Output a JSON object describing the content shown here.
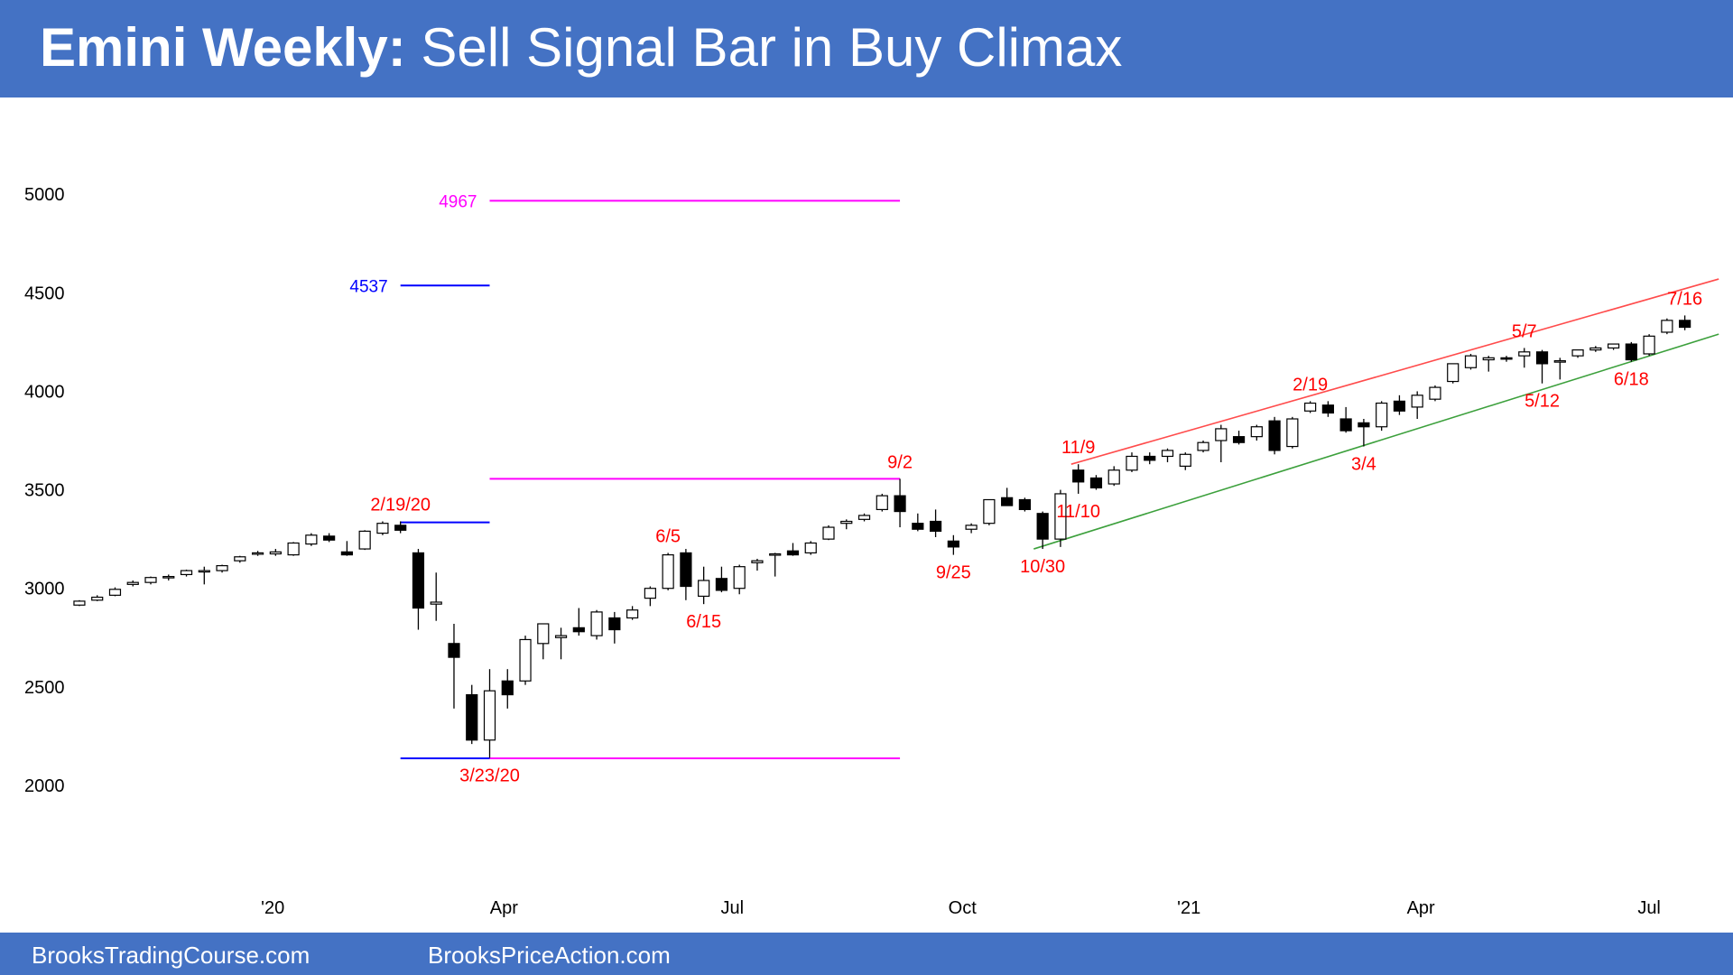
{
  "header": {
    "title_lead": "Emini Weekly:",
    "title_rest": "Sell Signal Bar in Buy Climax"
  },
  "footer": {
    "left": "BrooksTradingCourse.com",
    "right": "BrooksPriceAction.com"
  },
  "chart_data": {
    "type": "candlestick",
    "open": [
      2915,
      2940,
      2965,
      3020,
      3030,
      3055,
      3070,
      3085,
      3090,
      3140,
      3175,
      3175,
      3170,
      3225,
      3265,
      3185,
      3200,
      3280,
      3320,
      3180,
      2920,
      2720,
      2460,
      2230,
      2530,
      2530,
      2720,
      2750,
      2800,
      2760,
      2850,
      2850,
      2950,
      3000,
      3180,
      2960,
      3050,
      3000,
      3130,
      3170,
      3190,
      3180,
      3250,
      3330,
      3350,
      3400,
      3470,
      3330,
      3340,
      3240,
      3300,
      3330,
      3460,
      3450,
      3380,
      3250,
      3600,
      3560,
      3530,
      3600,
      3670,
      3670,
      3620,
      3700,
      3750,
      3770,
      3770,
      3850,
      3720,
      3900,
      3930,
      3860,
      3840,
      3820,
      3950,
      3920,
      3960,
      4050,
      4120,
      4160,
      4170,
      4180,
      4200,
      4150,
      4180,
      4210,
      4220,
      4240,
      4190,
      4300,
      4360
    ],
    "high": [
      2940,
      2965,
      3005,
      3040,
      3060,
      3070,
      3095,
      3110,
      3120,
      3165,
      3190,
      3200,
      3235,
      3280,
      3280,
      3240,
      3295,
      3340,
      3340,
      3200,
      3080,
      2820,
      2510,
      2590,
      2590,
      2760,
      2820,
      2800,
      2900,
      2890,
      2880,
      2910,
      3010,
      3180,
      3200,
      3110,
      3110,
      3120,
      3150,
      3180,
      3230,
      3240,
      3320,
      3350,
      3380,
      3480,
      3556,
      3380,
      3400,
      3270,
      3330,
      3450,
      3510,
      3460,
      3390,
      3500,
      3630,
      3575,
      3620,
      3690,
      3690,
      3710,
      3690,
      3750,
      3830,
      3800,
      3830,
      3870,
      3870,
      3950,
      3950,
      3920,
      3860,
      3950,
      3980,
      4000,
      4030,
      4140,
      4190,
      4180,
      4180,
      4220,
      4210,
      4170,
      4210,
      4230,
      4240,
      4250,
      4290,
      4370,
      4385
    ],
    "low": [
      2910,
      2935,
      2960,
      3010,
      3020,
      3040,
      3060,
      3020,
      3080,
      3130,
      3165,
      3165,
      3165,
      3215,
      3235,
      3165,
      3195,
      3270,
      3280,
      2790,
      2835,
      2390,
      2210,
      2140,
      2390,
      2510,
      2640,
      2640,
      2760,
      2740,
      2720,
      2840,
      2910,
      2990,
      2940,
      2920,
      2980,
      2970,
      3090,
      3060,
      3165,
      3170,
      3245,
      3300,
      3340,
      3390,
      3310,
      3290,
      3260,
      3170,
      3280,
      3320,
      3420,
      3390,
      3200,
      3210,
      3480,
      3500,
      3520,
      3590,
      3630,
      3640,
      3600,
      3690,
      3640,
      3730,
      3750,
      3680,
      3710,
      3890,
      3870,
      3790,
      3720,
      3800,
      3880,
      3860,
      3950,
      4040,
      4110,
      4100,
      4150,
      4120,
      4040,
      4060,
      4170,
      4200,
      4210,
      4150,
      4180,
      4290,
      4310
    ],
    "close": [
      2935,
      2955,
      2995,
      3030,
      3055,
      3060,
      3090,
      3090,
      3115,
      3160,
      3180,
      3185,
      3230,
      3270,
      3245,
      3170,
      3290,
      3330,
      3295,
      2900,
      2930,
      2650,
      2230,
      2480,
      2460,
      2740,
      2820,
      2760,
      2780,
      2880,
      2790,
      2890,
      3000,
      3170,
      3010,
      3040,
      2990,
      3110,
      3140,
      3175,
      3170,
      3230,
      3310,
      3340,
      3370,
      3470,
      3390,
      3300,
      3290,
      3210,
      3320,
      3450,
      3420,
      3400,
      3250,
      3480,
      3540,
      3510,
      3600,
      3670,
      3650,
      3700,
      3680,
      3740,
      3810,
      3740,
      3820,
      3700,
      3860,
      3940,
      3890,
      3800,
      3820,
      3940,
      3900,
      3980,
      4020,
      4140,
      4180,
      4170,
      4165,
      4200,
      4140,
      4155,
      4210,
      4220,
      4240,
      4160,
      4280,
      4360,
      4325
    ],
    "xlim": [
      -4.45,
      92.7
    ],
    "xticks": [
      {
        "value": 10.84,
        "label": "'20"
      },
      {
        "value": 23.8,
        "label": "Apr"
      },
      {
        "value": 36.6,
        "label": "Jul"
      },
      {
        "value": 49.5,
        "label": "Oct"
      },
      {
        "value": 62.2,
        "label": "'21"
      },
      {
        "value": 75.2,
        "label": "Apr"
      },
      {
        "value": 88.0,
        "label": "Jul"
      }
    ],
    "ylim": [
      1450,
      5230
    ],
    "yticks": [
      2000,
      2500,
      3000,
      3500,
      4000,
      4500,
      5000
    ],
    "levels": [
      {
        "value": 4967,
        "label": 4967,
        "color": "#ff00ff",
        "from": 23,
        "to": 46
      },
      {
        "value": 4537,
        "label": 4537,
        "color": "#0000ff",
        "from": 18,
        "to": 23
      },
      {
        "value": 3556,
        "color": "#ff00ff",
        "from": 23,
        "to": 46
      },
      {
        "value": 3335,
        "color": "#0000ff",
        "from": 18,
        "to": 23
      },
      {
        "value": 2137,
        "color": "#0000ff",
        "from": 18,
        "to": 23
      },
      {
        "value": 2137,
        "color": "#ff00ff",
        "from": 23,
        "to": 46
      }
    ],
    "trendlines": [
      {
        "color": "#ff4b4b",
        "x": [
          55.6,
          91.9
        ],
        "y": [
          3630,
          4570
        ]
      },
      {
        "color": "#3ca03c",
        "x": [
          53.5,
          91.9
        ],
        "y": [
          3200,
          4290
        ]
      }
    ],
    "annotations": [
      {
        "text": "2/19/20",
        "bar": 18,
        "side": "above"
      },
      {
        "text": "3/23/20",
        "bar": 23,
        "side": "below"
      },
      {
        "text": "6/5",
        "bar": 33,
        "side": "above"
      },
      {
        "text": "6/15",
        "bar": 35,
        "side": "below"
      },
      {
        "text": "9/2",
        "bar": 46,
        "side": "above"
      },
      {
        "text": "9/25",
        "bar": 49,
        "side": "below"
      },
      {
        "text": "10/30",
        "bar": 54,
        "side": "below"
      },
      {
        "text": "11/9",
        "bar": 56,
        "side": "above"
      },
      {
        "text": "11/10",
        "bar": 56,
        "side": "below"
      },
      {
        "text": "2/19",
        "bar": 69,
        "side": "above"
      },
      {
        "text": "3/4",
        "bar": 72,
        "side": "below"
      },
      {
        "text": "5/7",
        "bar": 81,
        "side": "above"
      },
      {
        "text": "5/12",
        "bar": 82,
        "side": "below"
      },
      {
        "text": "6/18",
        "bar": 87,
        "side": "below"
      },
      {
        "text": "7/16",
        "bar": 90,
        "side": "above"
      }
    ],
    "annotation_color": "#ff0000"
  }
}
